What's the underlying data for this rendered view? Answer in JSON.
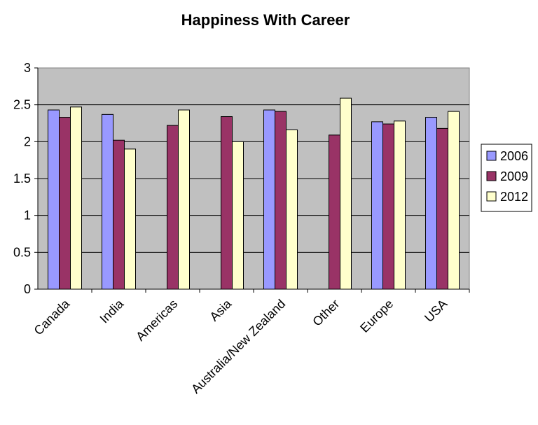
{
  "chart_data": {
    "type": "bar",
    "title": "Happiness With Career",
    "xlabel": "",
    "ylabel": "",
    "ylim": [
      0,
      3
    ],
    "yticks": [
      "0",
      "0.5",
      "1",
      "1.5",
      "2",
      "2.5",
      "3"
    ],
    "grid": true,
    "legend_position": "right",
    "categories": [
      "Canada",
      "India",
      "Americas",
      "Asia",
      "Australia/New Zealand",
      "Other",
      "Europe",
      "USA"
    ],
    "series": [
      {
        "name": "2006",
        "color": "#9999ff",
        "values": [
          2.43,
          2.37,
          null,
          null,
          2.43,
          null,
          2.27,
          2.33
        ]
      },
      {
        "name": "2009",
        "color": "#993366",
        "values": [
          2.33,
          2.02,
          2.22,
          2.34,
          2.41,
          2.09,
          2.24,
          2.18
        ]
      },
      {
        "name": "2012",
        "color": "#ffffcc",
        "values": [
          2.47,
          1.9,
          2.43,
          2.0,
          2.16,
          2.59,
          2.28,
          2.41
        ]
      }
    ],
    "plot_background": "#c0c0c0"
  }
}
